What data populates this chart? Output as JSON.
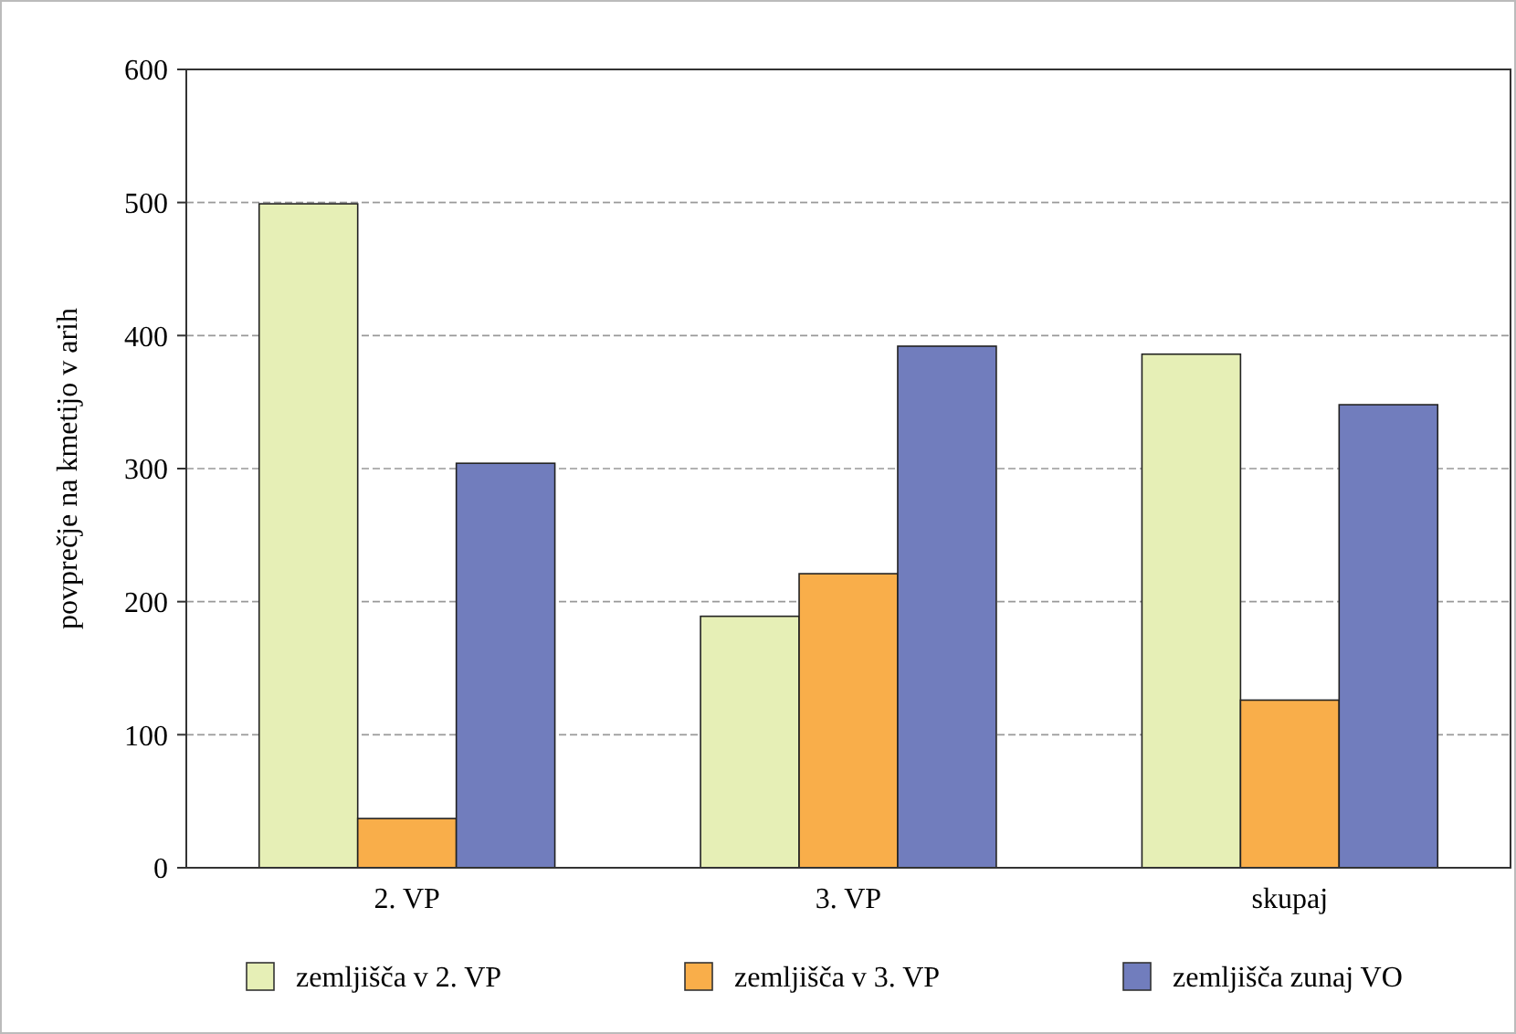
{
  "chart_data": {
    "type": "bar",
    "ylabel": "povprečje na kmetijo v arih",
    "categories": [
      "2. VP",
      "3. VP",
      "skupaj"
    ],
    "series": [
      {
        "name": "zemljišča v 2. VP",
        "color": "#e6efb6",
        "values": [
          499,
          189,
          386
        ]
      },
      {
        "name": "zemljišča v 3. VP",
        "color": "#f9ae4a",
        "values": [
          37,
          221,
          126
        ]
      },
      {
        "name": "zemljišča zunaj VO",
        "color": "#717dbd",
        "values": [
          304,
          392,
          348
        ]
      }
    ],
    "ylim": [
      0,
      600
    ],
    "yticks": [
      0,
      100,
      200,
      300,
      400,
      500,
      600
    ],
    "grid": "y",
    "legend": "bottom"
  }
}
